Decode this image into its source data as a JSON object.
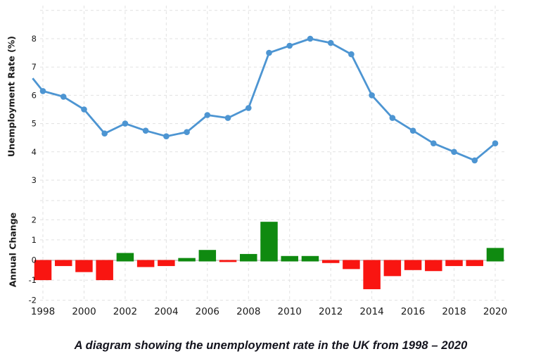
{
  "caption": {
    "text": "A diagram showing the unemployment rate in the UK from 1998 – 2020"
  },
  "colors": {
    "line": "#4d95d2",
    "positive_bar": "#0f8a10",
    "negative_bar": "#f91511",
    "grid": "#e1e1e1",
    "zero_line": "#c9c9c9",
    "tick_text": "#1a1a1a",
    "axis_title": "#1a1a1a",
    "background": "#ffffff"
  },
  "chart_data": [
    {
      "type": "line",
      "title": "",
      "xlabel": "",
      "ylabel": "Unemployment Rate (%)",
      "x": [
        1998,
        1999,
        2000,
        2001,
        2002,
        2003,
        2004,
        2005,
        2006,
        2007,
        2008,
        2009,
        2010,
        2011,
        2012,
        2013,
        2014,
        2015,
        2016,
        2017,
        2018,
        2019,
        2020
      ],
      "values": [
        6.15,
        5.95,
        5.5,
        4.65,
        5.0,
        4.75,
        4.55,
        4.7,
        5.3,
        5.2,
        5.55,
        7.5,
        7.75,
        8.0,
        7.85,
        7.45,
        6.0,
        5.2,
        4.75,
        4.3,
        4.0,
        3.7,
        4.3
      ],
      "leading_edge": {
        "x": 1997.5,
        "value": 6.6
      },
      "yticks": [
        3,
        4,
        5,
        6,
        7,
        8
      ],
      "ylim": [
        2.6,
        9.3
      ],
      "xlim": [
        1997.5,
        2020.5
      ],
      "grid": "dashed",
      "markers": true,
      "legend": "none"
    },
    {
      "type": "bar",
      "title": "",
      "xlabel": "",
      "ylabel": "Annual Change",
      "x": [
        1998,
        1999,
        2000,
        2001,
        2002,
        2003,
        2004,
        2005,
        2006,
        2007,
        2008,
        2009,
        2010,
        2011,
        2012,
        2013,
        2014,
        2015,
        2016,
        2017,
        2018,
        2019,
        2020
      ],
      "values": [
        -1.0,
        -0.3,
        -0.6,
        -1.0,
        0.35,
        -0.35,
        -0.3,
        0.1,
        0.5,
        -0.1,
        0.3,
        1.9,
        0.2,
        0.2,
        -0.15,
        -0.45,
        -1.45,
        -0.8,
        -0.5,
        -0.55,
        -0.3,
        -0.3,
        0.6
      ],
      "yticks": [
        2,
        1,
        0,
        -1,
        -2
      ],
      "xticks": [
        1998,
        2000,
        2002,
        2004,
        2006,
        2008,
        2010,
        2012,
        2014,
        2016,
        2018,
        2020
      ],
      "ylim": [
        -2.1,
        3.0
      ],
      "grid": "dashed",
      "color_rule": "green if positive, red if negative",
      "legend": "none"
    }
  ]
}
